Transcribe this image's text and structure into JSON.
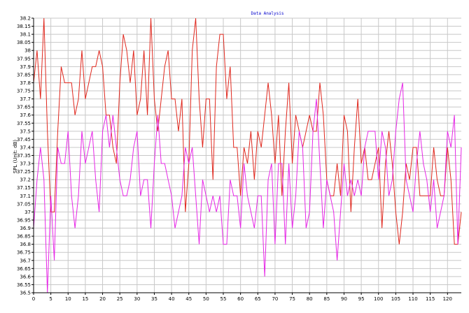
{
  "chart_data": {
    "type": "line",
    "title": "Data Analysis",
    "ylabel": "SPL (Unit: dB)",
    "xlabel": "",
    "xlim": [
      0,
      124
    ],
    "ylim": [
      36.5,
      38.2
    ],
    "x_ticks": [
      0,
      5,
      10,
      15,
      20,
      25,
      30,
      35,
      40,
      45,
      50,
      55,
      60,
      65,
      70,
      75,
      80,
      85,
      90,
      95,
      100,
      105,
      110,
      115,
      120
    ],
    "y_ticks": [
      36.5,
      36.55,
      36.6,
      36.65,
      36.7,
      36.75,
      36.8,
      36.85,
      36.9,
      36.95,
      37,
      37.05,
      37.1,
      37.15,
      37.2,
      37.25,
      37.3,
      37.35,
      37.4,
      37.45,
      37.5,
      37.55,
      37.6,
      37.65,
      37.7,
      37.75,
      37.8,
      37.85,
      37.9,
      37.95,
      38,
      38.05,
      38.1,
      38.15,
      38.2
    ],
    "grid": true,
    "series": [
      {
        "color": "#e0281e",
        "values": [
          37.8,
          38.0,
          37.7,
          38.2,
          37.5,
          37.0,
          37.0,
          37.5,
          37.9,
          37.8,
          37.8,
          37.8,
          37.6,
          37.7,
          38.0,
          37.7,
          37.8,
          37.9,
          37.9,
          38.0,
          37.9,
          37.6,
          37.6,
          37.4,
          37.3,
          37.8,
          38.1,
          38.0,
          37.8,
          38.0,
          37.6,
          37.7,
          38.0,
          37.6,
          38.2,
          37.7,
          37.5,
          37.7,
          37.9,
          38.0,
          37.7,
          37.7,
          37.5,
          37.7,
          37.0,
          37.3,
          38.0,
          38.2,
          37.7,
          37.4,
          37.7,
          37.7,
          37.2,
          37.9,
          38.1,
          38.1,
          37.7,
          37.9,
          37.4,
          37.4,
          37.1,
          37.4,
          37.3,
          37.5,
          37.2,
          37.5,
          37.4,
          37.6,
          37.8,
          37.6,
          37.3,
          37.6,
          37.1,
          37.5,
          37.8,
          37.3,
          37.6,
          37.5,
          37.4,
          37.5,
          37.6,
          37.5,
          37.5,
          37.8,
          37.6,
          37.2,
          37.1,
          37.1,
          37.3,
          37.1,
          37.6,
          37.5,
          37.0,
          37.4,
          37.7,
          37.3,
          37.4,
          37.2,
          37.2,
          37.3,
          37.4,
          36.9,
          37.3,
          37.5,
          37.3,
          37.0,
          36.8,
          37.0,
          37.3,
          37.2,
          37.4,
          37.4,
          37.1,
          37.1,
          37.1,
          37.1,
          37.4,
          37.2,
          37.1,
          37.1,
          37.4,
          37.2,
          36.8,
          36.8,
          37.0
        ]
      },
      {
        "color": "#e626e6",
        "values": [
          36.9,
          37.2,
          37.4,
          37.2,
          36.5,
          37.1,
          36.7,
          37.4,
          37.3,
          37.3,
          37.5,
          37.1,
          36.9,
          37.1,
          37.5,
          37.3,
          37.4,
          37.5,
          37.2,
          37.0,
          37.5,
          37.6,
          37.4,
          37.6,
          37.4,
          37.2,
          37.1,
          37.1,
          37.2,
          37.4,
          37.5,
          37.1,
          37.2,
          37.2,
          36.9,
          37.3,
          37.6,
          37.3,
          37.3,
          37.2,
          37.1,
          36.9,
          37.0,
          37.1,
          37.4,
          37.3,
          37.4,
          37.1,
          36.8,
          37.2,
          37.1,
          37.0,
          37.1,
          37.0,
          37.1,
          36.8,
          36.8,
          37.2,
          37.1,
          37.1,
          36.9,
          37.3,
          37.1,
          37.0,
          36.9,
          37.1,
          37.1,
          36.6,
          37.2,
          37.3,
          36.8,
          37.3,
          37.3,
          36.8,
          37.3,
          36.9,
          37.1,
          37.5,
          37.4,
          36.9,
          37.0,
          37.5,
          37.7,
          37.3,
          36.9,
          37.2,
          37.1,
          37.0,
          36.7,
          37.0,
          37.3,
          37.1,
          37.2,
          37.1,
          37.2,
          37.1,
          37.4,
          37.5,
          37.5,
          37.5,
          37.2,
          37.5,
          37.4,
          37.1,
          37.2,
          37.5,
          37.7,
          37.8,
          37.2,
          37.1,
          37.0,
          37.3,
          37.5,
          37.3,
          37.2,
          37.0,
          37.2,
          36.9,
          37.0,
          37.1,
          37.5,
          37.4,
          37.6,
          36.8,
          37.4
        ]
      }
    ]
  }
}
